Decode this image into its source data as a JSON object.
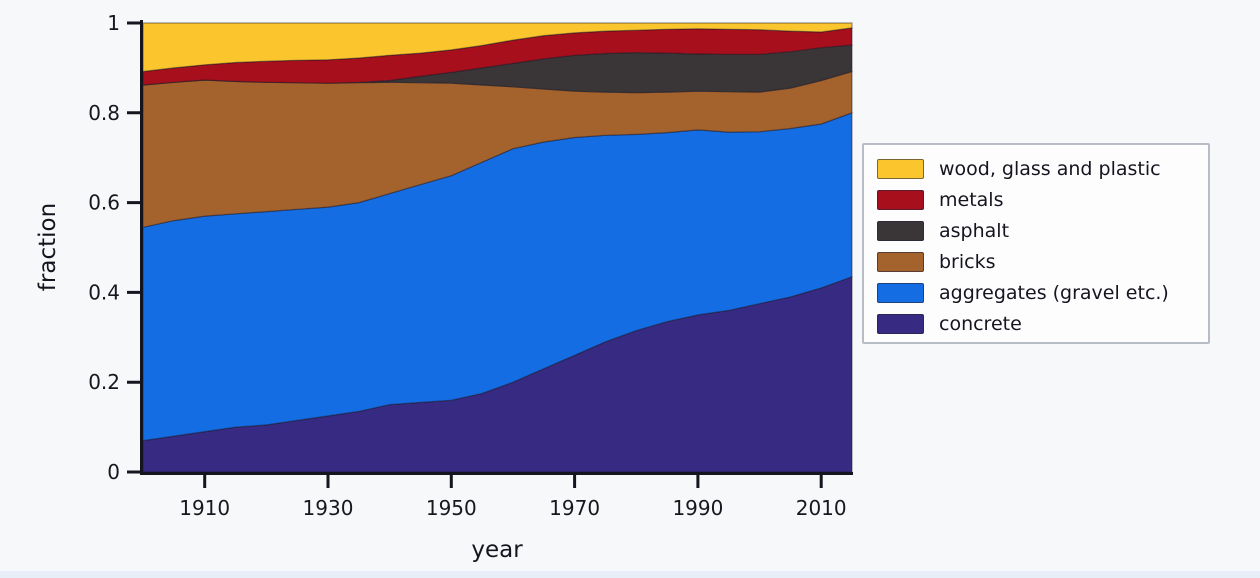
{
  "figure": {
    "background": "#f7f8f9",
    "bottom_strip_color": "#e8eef8",
    "axis_color": "#15151f",
    "text_color": "#17171f",
    "edge_line_color": "rgba(25,22,38,0.45)"
  },
  "chart_data": {
    "type": "area",
    "stacked": true,
    "title": "",
    "xlabel": "year",
    "ylabel": "fraction",
    "xlim": [
      1900,
      2015
    ],
    "ylim": [
      0,
      1
    ],
    "xticks": [
      1910,
      1930,
      1950,
      1970,
      1990,
      2010
    ],
    "xtick_labels": [
      "1910",
      "1930",
      "1950",
      "1970",
      "1990",
      "2010"
    ],
    "yticks": [
      0,
      0.2,
      0.4,
      0.6,
      0.8,
      1
    ],
    "ytick_labels": [
      "0",
      "0.2",
      "0.4",
      "0.6",
      "0.8",
      "1"
    ],
    "grid": false,
    "legend_position": "right",
    "years": [
      1900,
      1905,
      1910,
      1915,
      1920,
      1925,
      1930,
      1935,
      1940,
      1945,
      1950,
      1955,
      1960,
      1965,
      1970,
      1975,
      1980,
      1985,
      1990,
      1995,
      2000,
      2005,
      2010,
      2015
    ],
    "series": [
      {
        "name": "concrete",
        "color": "#362a82",
        "values": [
          0.07,
          0.08,
          0.09,
          0.1,
          0.105,
          0.115,
          0.125,
          0.135,
          0.15,
          0.155,
          0.16,
          0.175,
          0.2,
          0.23,
          0.26,
          0.29,
          0.315,
          0.335,
          0.35,
          0.36,
          0.375,
          0.39,
          0.41,
          0.435
        ]
      },
      {
        "name": "aggregates (gravel etc.)",
        "color": "#156de4",
        "values": [
          0.475,
          0.48,
          0.48,
          0.475,
          0.475,
          0.47,
          0.465,
          0.465,
          0.47,
          0.485,
          0.5,
          0.515,
          0.52,
          0.505,
          0.485,
          0.46,
          0.437,
          0.421,
          0.412,
          0.397,
          0.383,
          0.375,
          0.365,
          0.365
        ]
      },
      {
        "name": "bricks",
        "color": "#a4622d",
        "values": [
          0.317,
          0.308,
          0.303,
          0.295,
          0.288,
          0.282,
          0.276,
          0.267,
          0.248,
          0.227,
          0.206,
          0.172,
          0.138,
          0.118,
          0.103,
          0.096,
          0.093,
          0.09,
          0.086,
          0.09,
          0.088,
          0.09,
          0.097,
          0.092
        ]
      },
      {
        "name": "asphalt",
        "color": "#3a3637",
        "values": [
          0.0,
          0.0,
          0.0,
          0.0,
          0.0,
          0.0,
          0.0,
          0.001,
          0.004,
          0.014,
          0.024,
          0.038,
          0.052,
          0.067,
          0.08,
          0.086,
          0.089,
          0.087,
          0.083,
          0.083,
          0.084,
          0.081,
          0.073,
          0.059
        ]
      },
      {
        "name": "metals",
        "color": "#a60f1b",
        "values": [
          0.03,
          0.032,
          0.034,
          0.042,
          0.047,
          0.05,
          0.052,
          0.054,
          0.056,
          0.052,
          0.05,
          0.05,
          0.052,
          0.052,
          0.05,
          0.05,
          0.05,
          0.053,
          0.056,
          0.056,
          0.055,
          0.046,
          0.035,
          0.038
        ]
      },
      {
        "name": "wood, glass and plastic",
        "color": "#fbc52d",
        "values": [
          0.108,
          0.1,
          0.093,
          0.088,
          0.085,
          0.083,
          0.082,
          0.078,
          0.072,
          0.067,
          0.06,
          0.05,
          0.038,
          0.028,
          0.022,
          0.018,
          0.016,
          0.014,
          0.013,
          0.014,
          0.015,
          0.018,
          0.02,
          0.011
        ]
      }
    ]
  }
}
